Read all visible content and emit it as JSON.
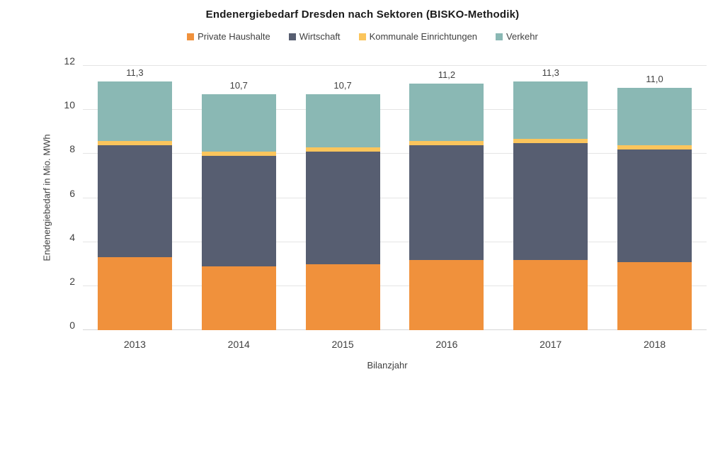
{
  "chart_data": {
    "type": "bar",
    "stacked": true,
    "title": "Endenergiebedarf Dresden nach Sektoren (BISKO-Methodik)",
    "xlabel": "Bilanzjahr",
    "ylabel": "Endenergiebedarf in Mio. MWh",
    "categories": [
      "2013",
      "2014",
      "2015",
      "2016",
      "2017",
      "2018"
    ],
    "series": [
      {
        "name": "Private Haushalte",
        "color": "#f0913c",
        "values": [
          3.3,
          2.9,
          3.0,
          3.2,
          3.2,
          3.1
        ]
      },
      {
        "name": "Wirtschaft",
        "color": "#575e71",
        "values": [
          5.1,
          5.0,
          5.1,
          5.2,
          5.3,
          5.1
        ]
      },
      {
        "name": "Kommunale Einrichtungen",
        "color": "#fbc55c",
        "values": [
          0.2,
          0.2,
          0.2,
          0.2,
          0.2,
          0.2
        ]
      },
      {
        "name": "Verkehr",
        "color": "#8ab8b4",
        "values": [
          2.7,
          2.6,
          2.4,
          2.6,
          2.6,
          2.6
        ]
      }
    ],
    "totals": [
      11.3,
      10.7,
      10.7,
      11.2,
      11.3,
      11.0
    ],
    "total_labels": [
      "11,3",
      "10,7",
      "10,7",
      "11,2",
      "11,3",
      "11,0"
    ],
    "y_ticks": [
      0,
      2,
      4,
      6,
      8,
      10,
      12
    ],
    "ylim": [
      0,
      12
    ],
    "grid": true,
    "legend_position": "top",
    "colors": {
      "gridline": "#e4e4e4",
      "axis_baseline": "#d6d6d6",
      "tick_text": "#404040",
      "title_text": "#1a1a1a",
      "background": "#ffffff"
    }
  }
}
